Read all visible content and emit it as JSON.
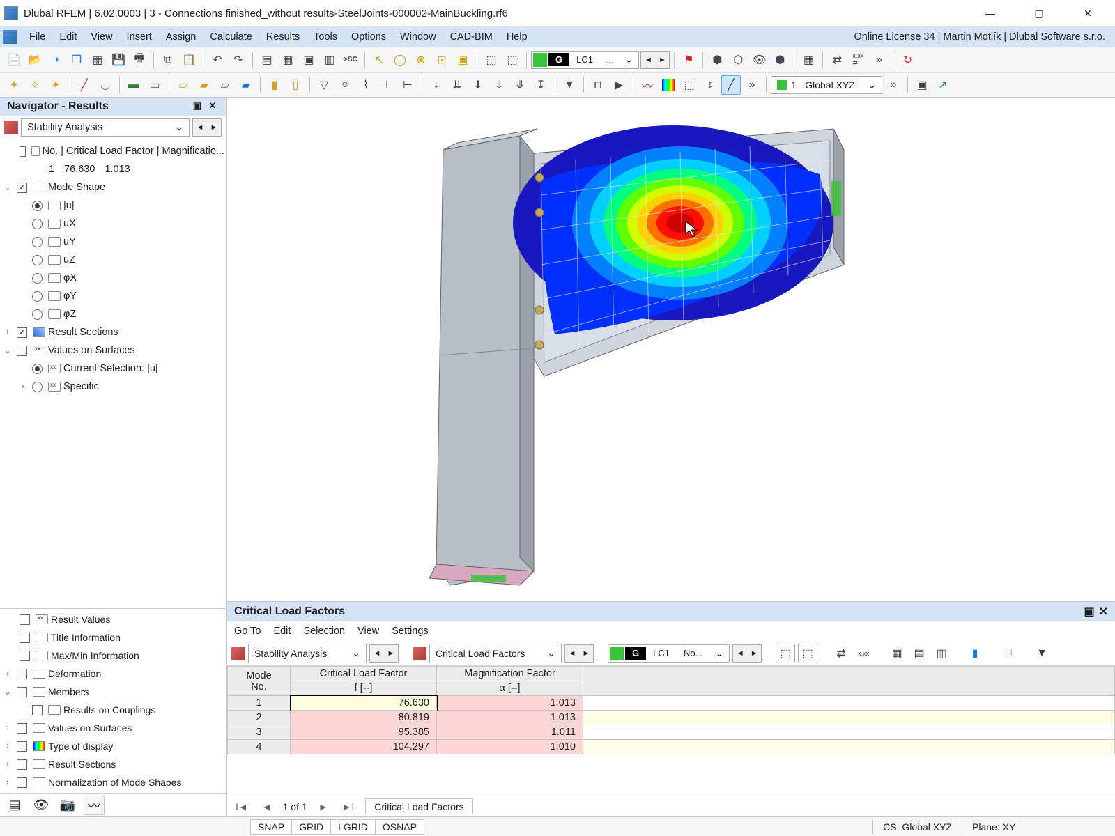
{
  "window": {
    "title": "Dlubal RFEM | 6.02.0003 | 3 - Connections finished_without results-SteelJoints-000002-MainBuckling.rf6",
    "license": "Online License 34 | Martin Motlík | Dlubal Software s.r.o."
  },
  "menu": [
    "File",
    "Edit",
    "View",
    "Insert",
    "Assign",
    "Calculate",
    "Results",
    "Tools",
    "Options",
    "Window",
    "CAD-BIM",
    "Help"
  ],
  "toolbar": {
    "lc_g": "G",
    "lc_label": "LC1",
    "lc_dots": "...",
    "coord": "1 - Global XYZ"
  },
  "navigator": {
    "title": "Navigator - Results",
    "combo": "Stability Analysis",
    "header": "No. | Critical Load Factor | Magnificatio...",
    "row": {
      "no": "1",
      "f": "76.630",
      "a": "1.013"
    },
    "mode_shape": "Mode Shape",
    "modes": [
      "|u|",
      "uX",
      "uY",
      "uZ",
      "φX",
      "φY",
      "φZ"
    ],
    "result_sections": "Result Sections",
    "values_on_surfaces": "Values on Surfaces",
    "current_selection": "Current Selection: |u|",
    "specific": "Specific",
    "bottom": [
      "Result Values",
      "Title Information",
      "Max/Min Information",
      "Deformation",
      "Members",
      "Results on Couplings",
      "Values on Surfaces",
      "Type of display",
      "Result Sections",
      "Normalization of Mode Shapes"
    ]
  },
  "results": {
    "title": "Critical Load Factors",
    "menu": [
      "Go To",
      "Edit",
      "Selection",
      "View",
      "Settings"
    ],
    "combo1": "Stability Analysis",
    "combo2": "Critical Load Factors",
    "lc_label": "LC1",
    "lc_no": "No...",
    "columns": {
      "mode1": "Mode",
      "mode2": "No.",
      "clf1": "Critical Load Factor",
      "clf2": "f [--]",
      "mf1": "Magnification Factor",
      "mf2": "α [--]"
    },
    "rows": [
      {
        "no": "1",
        "f": "76.630",
        "a": "1.013"
      },
      {
        "no": "2",
        "f": "80.819",
        "a": "1.013"
      },
      {
        "no": "3",
        "f": "95.385",
        "a": "1.011"
      },
      {
        "no": "4",
        "f": "104.297",
        "a": "1.010"
      }
    ],
    "pager": "1 of 1",
    "tab": "Critical Load Factors"
  },
  "status": {
    "snap": "SNAP",
    "grid": "GRID",
    "lgrid": "LGRID",
    "osnap": "OSNAP",
    "cs": "CS: Global XYZ",
    "plane": "Plane: XY"
  },
  "viz": {
    "contour_colors": [
      "#1818c0",
      "#0030ff",
      "#0080ff",
      "#00d0ff",
      "#00ff80",
      "#60ff00",
      "#d0ff00",
      "#ffd000",
      "#ff7000",
      "#ff1000",
      "#d00000"
    ],
    "steel": "#b9bdc5",
    "steel_dark": "#9ba0aa",
    "steel_light": "#d0d4dc",
    "mesh": "#d8dde8",
    "edge": "#666"
  }
}
